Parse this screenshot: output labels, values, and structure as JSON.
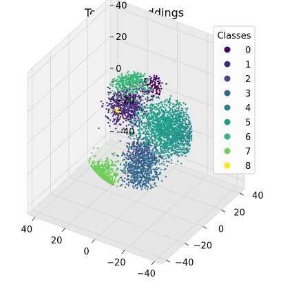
{
  "chart_data": {
    "type": "scatter",
    "projection": "3d",
    "title": "Topic embeddings",
    "xlabel": "",
    "ylabel": "",
    "zlabel": "",
    "xlim": [
      -45,
      45
    ],
    "ylim": [
      -45,
      45
    ],
    "zlim": [
      -45,
      45
    ],
    "x_ticks": [
      "−40",
      "−20",
      "0",
      "20",
      "40"
    ],
    "y_ticks": [
      "−40",
      "−20",
      "0",
      "20",
      "40"
    ],
    "z_ticks": [
      "−40",
      "−20",
      "0",
      "20",
      "40"
    ],
    "grid": true,
    "legend": {
      "title": "Classes",
      "placement": "top-right",
      "entries": [
        "0",
        "1",
        "2",
        "3",
        "4",
        "5",
        "6",
        "7",
        "8"
      ]
    },
    "colormap": "viridis",
    "class_colors": [
      "#440154",
      "#482878",
      "#3e4989",
      "#31688e",
      "#26828e",
      "#1f9e89",
      "#35b779",
      "#6ece58",
      "#fde725"
    ],
    "series": [
      {
        "name": "0",
        "center": [
          -5,
          10,
          25
        ],
        "spread": 6,
        "points": 120
      },
      {
        "name": "1",
        "center": [
          10,
          5,
          10
        ],
        "spread": 10,
        "points": 650
      },
      {
        "name": "2",
        "center": [
          -10,
          -10,
          -5
        ],
        "spread": 8,
        "points": 300
      },
      {
        "name": "3",
        "center": [
          -15,
          -20,
          -10
        ],
        "spread": 12,
        "points": 500
      },
      {
        "name": "4",
        "center": [
          -25,
          5,
          5
        ],
        "spread": 12,
        "points": 500
      },
      {
        "name": "5",
        "center": [
          -15,
          5,
          5
        ],
        "spread": 14,
        "points": 1100
      },
      {
        "name": "6",
        "center": [
          20,
          25,
          15
        ],
        "spread": 10,
        "points": 350
      },
      {
        "name": "7",
        "center": [
          10,
          -20,
          -20
        ],
        "spread": 8,
        "points": 500
      },
      {
        "name": "8",
        "center": [
          15,
          5,
          5
        ],
        "spread": 3,
        "points": 15
      }
    ]
  }
}
